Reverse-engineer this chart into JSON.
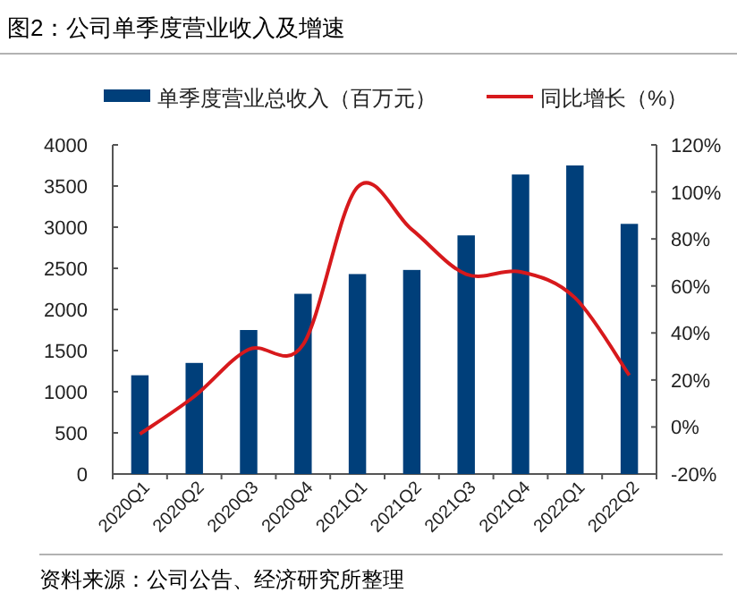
{
  "chart_data": {
    "type": "bar",
    "title": "图2：公司单季度营业收入及增速",
    "categories": [
      "2020Q1",
      "2020Q2",
      "2020Q3",
      "2020Q4",
      "2021Q1",
      "2021Q2",
      "2021Q3",
      "2021Q4",
      "2022Q1",
      "2022Q2"
    ],
    "series": [
      {
        "name": "单季度营业总收入（百万元）",
        "color": "#003f7a",
        "values": [
          1200,
          1350,
          1750,
          2190,
          2430,
          2480,
          2900,
          3640,
          3750,
          3040
        ]
      },
      {
        "name": "同比增长（%）",
        "type": "line",
        "axis": "y2",
        "color": "#d7191c",
        "values": [
          -3,
          13,
          33,
          35,
          102,
          84,
          65,
          66,
          55,
          22
        ]
      }
    ],
    "ylim": [
      0,
      4000
    ],
    "yticks": [
      0,
      500,
      1000,
      1500,
      2000,
      2500,
      3000,
      3500,
      4000
    ],
    "y2lim": [
      -20,
      120
    ],
    "y2ticks": [
      {
        "value": -20,
        "label": "-20%"
      },
      {
        "value": 0,
        "label": "0%"
      },
      {
        "value": 20,
        "label": "20%"
      },
      {
        "value": 40,
        "label": "40%"
      },
      {
        "value": 60,
        "label": "60%"
      },
      {
        "value": 80,
        "label": "80%"
      },
      {
        "value": 100,
        "label": "100%"
      },
      {
        "value": 120,
        "label": "120%"
      }
    ],
    "grid": false,
    "legend": "top",
    "annotations": [
      "资料来源：公司公告、经济研究所整理"
    ]
  }
}
